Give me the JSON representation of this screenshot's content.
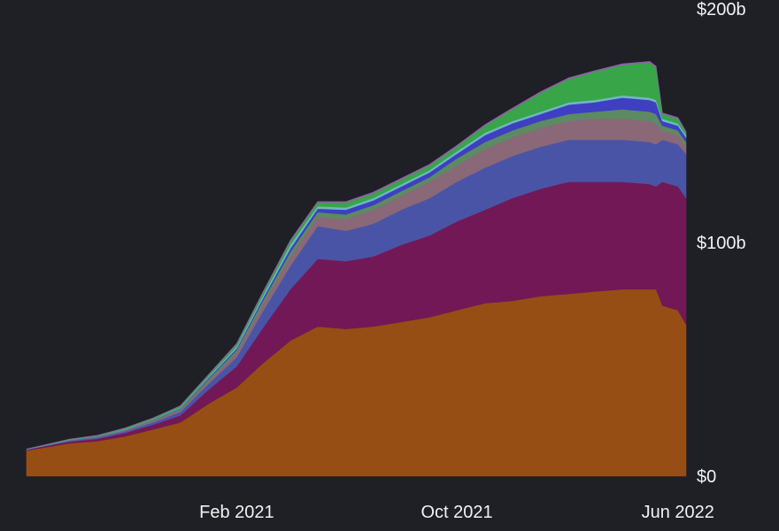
{
  "chart_data": {
    "type": "area",
    "stacked": true,
    "title": "",
    "xlabel": "",
    "ylabel": "",
    "ylim": [
      0,
      200
    ],
    "y_unit": "$b",
    "grid": false,
    "legend": "none",
    "y_ticks": [
      {
        "value": 0,
        "label": "$0"
      },
      {
        "value": 100,
        "label": "$100b"
      },
      {
        "value": 200,
        "label": "$200b"
      }
    ],
    "x_ticks": [
      {
        "date": "2021-02",
        "label": "Feb 2021"
      },
      {
        "date": "2021-10",
        "label": "Oct 2021"
      },
      {
        "date": "2022-06",
        "label": "Jun 2022"
      }
    ],
    "x": [
      "2020-06-15",
      "2020-07-01",
      "2020-08-01",
      "2020-09-01",
      "2020-10-01",
      "2020-11-01",
      "2020-12-01",
      "2021-01-01",
      "2021-02-01",
      "2021-03-01",
      "2021-04-01",
      "2021-05-01",
      "2021-06-01",
      "2021-07-01",
      "2021-08-01",
      "2021-09-01",
      "2021-10-01",
      "2021-11-01",
      "2021-12-01",
      "2022-01-01",
      "2022-02-01",
      "2022-03-01",
      "2022-04-01",
      "2022-05-01",
      "2022-05-08",
      "2022-05-15",
      "2022-06-01",
      "2022-06-10"
    ],
    "series": [
      {
        "color": "#974e14",
        "values": [
          11,
          12,
          14,
          15,
          17,
          20,
          23,
          31,
          38,
          48,
          58,
          64,
          63,
          64,
          66,
          68,
          71,
          74,
          75,
          77,
          78,
          79,
          80,
          80,
          80,
          73,
          71,
          65
        ]
      },
      {
        "color": "#731856",
        "values": [
          0.3,
          0.5,
          0.8,
          1,
          1.5,
          2,
          3,
          6,
          9,
          15,
          22,
          29,
          29,
          30,
          33,
          35,
          38,
          40,
          44,
          46,
          48,
          47,
          46,
          45,
          44,
          53,
          53,
          54
        ]
      },
      {
        "color": "#4a54a6",
        "values": [
          0.1,
          0.2,
          0.3,
          0.5,
          0.7,
          1,
          1.5,
          2.5,
          4,
          7,
          10,
          14,
          13,
          14,
          15,
          16,
          17,
          18,
          18,
          18,
          18,
          18,
          18,
          18,
          18,
          18,
          18,
          19
        ]
      },
      {
        "color": "#8a6878",
        "values": [
          0.1,
          0.1,
          0.2,
          0.3,
          0.4,
          0.6,
          0.8,
          1.2,
          2,
          3,
          4,
          4,
          5,
          6,
          6,
          7,
          7,
          8,
          8,
          8,
          8,
          9,
          9,
          9,
          9,
          4,
          4,
          3
        ]
      },
      {
        "color": "#5c8a62",
        "values": [
          0,
          0,
          0.1,
          0.1,
          0.2,
          0.3,
          0.5,
          0.8,
          1,
          1.5,
          2,
          2,
          2,
          2,
          2,
          2,
          3,
          3,
          3,
          3,
          3,
          3,
          4,
          4,
          4,
          2,
          2,
          2
        ]
      },
      {
        "color": "#3f3fc2",
        "values": [
          0,
          0,
          0.1,
          0.1,
          0.1,
          0.2,
          0.3,
          0.5,
          0.7,
          1,
          1.5,
          1.5,
          2,
          2,
          2,
          2,
          2,
          3,
          3,
          3,
          4,
          4,
          5,
          5,
          5,
          2,
          2,
          2
        ]
      },
      {
        "color": "#6fb8c4",
        "values": [
          0,
          0.1,
          0.1,
          0.1,
          0.2,
          0.2,
          0.3,
          0.5,
          0.8,
          1,
          1.5,
          1,
          1,
          1,
          1,
          1,
          1,
          1,
          1,
          1,
          1,
          1,
          1,
          1,
          1,
          1,
          1,
          1
        ]
      },
      {
        "color": "#38a548",
        "values": [
          0.1,
          0.1,
          0.2,
          0.3,
          0.4,
          0.5,
          0.6,
          0.8,
          1,
          1.3,
          1.5,
          1.5,
          2,
          2,
          2,
          2,
          2,
          3,
          5,
          8,
          10,
          12,
          13,
          15,
          14,
          2,
          2,
          1
        ]
      },
      {
        "color": "#8e62a8",
        "values": [
          0,
          0,
          0,
          0.1,
          0.1,
          0.1,
          0.1,
          0.2,
          0.3,
          0.4,
          0.5,
          0.5,
          0.5,
          0.5,
          0.5,
          0.5,
          0.5,
          0.5,
          0.5,
          0.5,
          0.5,
          0.5,
          0.5,
          0.5,
          0.5,
          0.5,
          0.5,
          0.5
        ]
      }
    ]
  }
}
